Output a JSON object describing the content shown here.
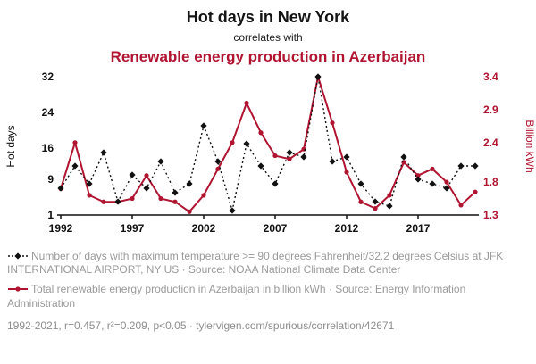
{
  "header": {
    "title": "Hot days in New York",
    "subtitle": "correlates with",
    "title2": "Renewable energy production in Azerbaijan"
  },
  "colors": {
    "red": "#b01430",
    "black": "#111111",
    "grey_text": "#9a9a9a"
  },
  "chart_data": {
    "type": "line",
    "x": [
      1992,
      1993,
      1994,
      1995,
      1996,
      1997,
      1998,
      1999,
      2000,
      2001,
      2002,
      2003,
      2004,
      2005,
      2006,
      2007,
      2008,
      2009,
      2010,
      2011,
      2012,
      2013,
      2014,
      2015,
      2016,
      2017,
      2018,
      2019,
      2020,
      2021
    ],
    "series": [
      {
        "name": "Number of days with maximum temperature >= 90 degrees at JFK International Airport",
        "axis": "left",
        "color": "#111111",
        "style": "dotted-diamond",
        "values": [
          7,
          12,
          8,
          15,
          4,
          10,
          7,
          13,
          6,
          8,
          21,
          13,
          2,
          17,
          12,
          8,
          15,
          14,
          32,
          13,
          14,
          8,
          4,
          3,
          14,
          9,
          8,
          7,
          12,
          12
        ]
      },
      {
        "name": "Total renewable energy production in Azerbaijan (billion kWh)",
        "axis": "right",
        "color": "#b01430",
        "style": "solid-dot",
        "values": [
          1.7,
          2.4,
          1.6,
          1.5,
          1.5,
          1.55,
          1.9,
          1.55,
          1.5,
          1.35,
          1.6,
          2.0,
          2.4,
          3.0,
          2.55,
          2.2,
          2.15,
          2.3,
          3.4,
          2.7,
          1.95,
          1.5,
          1.4,
          1.6,
          2.1,
          1.9,
          2.0,
          1.8,
          1.45,
          1.65
        ]
      }
    ],
    "left_axis": {
      "label": "Hot days",
      "ticks": [
        1,
        9,
        16,
        24,
        32
      ],
      "range": [
        1,
        32
      ]
    },
    "right_axis": {
      "label": "Billion kWh",
      "ticks": [
        1.3,
        1.8,
        2.4,
        2.9,
        3.4
      ],
      "range": [
        1.3,
        3.4
      ]
    },
    "x_ticks": [
      1992,
      1997,
      2002,
      2007,
      2012,
      2017
    ],
    "grid": false,
    "legend_position": "below"
  },
  "legend": [
    {
      "text": "Number of days with maximum temperature >= 90 degrees Fahrenheit/32.2 degrees Celsius at JFK INTERNATIONAL AIRPORT, NY US · Source: NOAA National Climate Data Center"
    },
    {
      "text": "Total renewable energy production in Azerbaijan in billion kWh · Source: Energy Information Administration"
    }
  ],
  "footer": "1992-2021, r=0.457, r²=0.209, p<0.05 · tylervigen.com/spurious/correlation/42671"
}
